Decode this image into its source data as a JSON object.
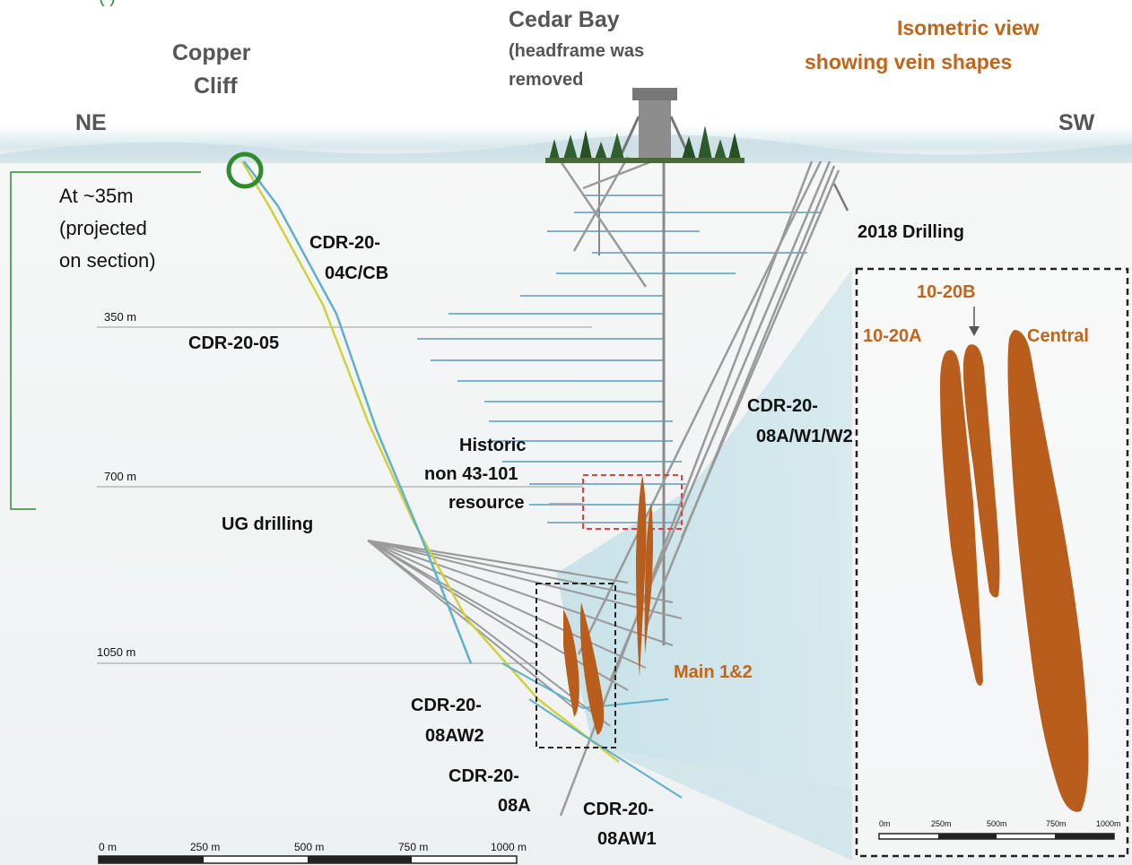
{
  "header": {
    "top_partial": "(                                    )",
    "title_line1": "Isometric view",
    "title_line2": "showing vein shapes"
  },
  "locations": {
    "copper_cliff_1": "Copper",
    "copper_cliff_2": "Cliff",
    "cedar_bay_title": "Cedar Bay",
    "cedar_bay_note_1": "(headframe was",
    "cedar_bay_note_2": "removed",
    "ne": "NE",
    "sw": "SW"
  },
  "note": {
    "line1": "At ~35m",
    "line2": "(projected",
    "line3": "on section)"
  },
  "depth_labels": [
    "350 m",
    "700 m",
    "1050 m"
  ],
  "drill_labels": {
    "cdr_04c_1": "CDR-20-",
    "cdr_04c_2": "04C/CB",
    "cdr_05": "CDR-20-05",
    "drilling_2018": "2018 Drilling",
    "cdr_08a_w_1": "CDR-20-",
    "cdr_08a_w_2": "08A/W1/W2",
    "ug_drilling": "UG drilling",
    "cdr_08aw2_1": "CDR-20-",
    "cdr_08aw2_2": "08AW2",
    "cdr_08a_1": "CDR-20-",
    "cdr_08a_2": "08A",
    "cdr_08aw1_1": "CDR-20-",
    "cdr_08aw1_2": "08AW1"
  },
  "resource": {
    "line1": "Historic",
    "line2": "non 43-101",
    "line3": "resource"
  },
  "veins": {
    "main": "Main 1&2",
    "a": "10-20A",
    "b": "10-20B",
    "central": "Central"
  },
  "scale_main": [
    "0 m",
    "250 m",
    "500 m",
    "750 m",
    "1000 m"
  ],
  "scale_inset": [
    "0m",
    "250m",
    "500m",
    "750m",
    "1000m"
  ],
  "colors": {
    "vein": "#b85d1c",
    "blue_hole": "#5fb0cc",
    "yellow_hole": "#cfd23a",
    "grey_hole": "#9a9a9a",
    "level_line": "#7fb2c9",
    "green_outline": "#2e8b2e",
    "label_orange": "#c0651c",
    "resource_box": "#e04040"
  }
}
